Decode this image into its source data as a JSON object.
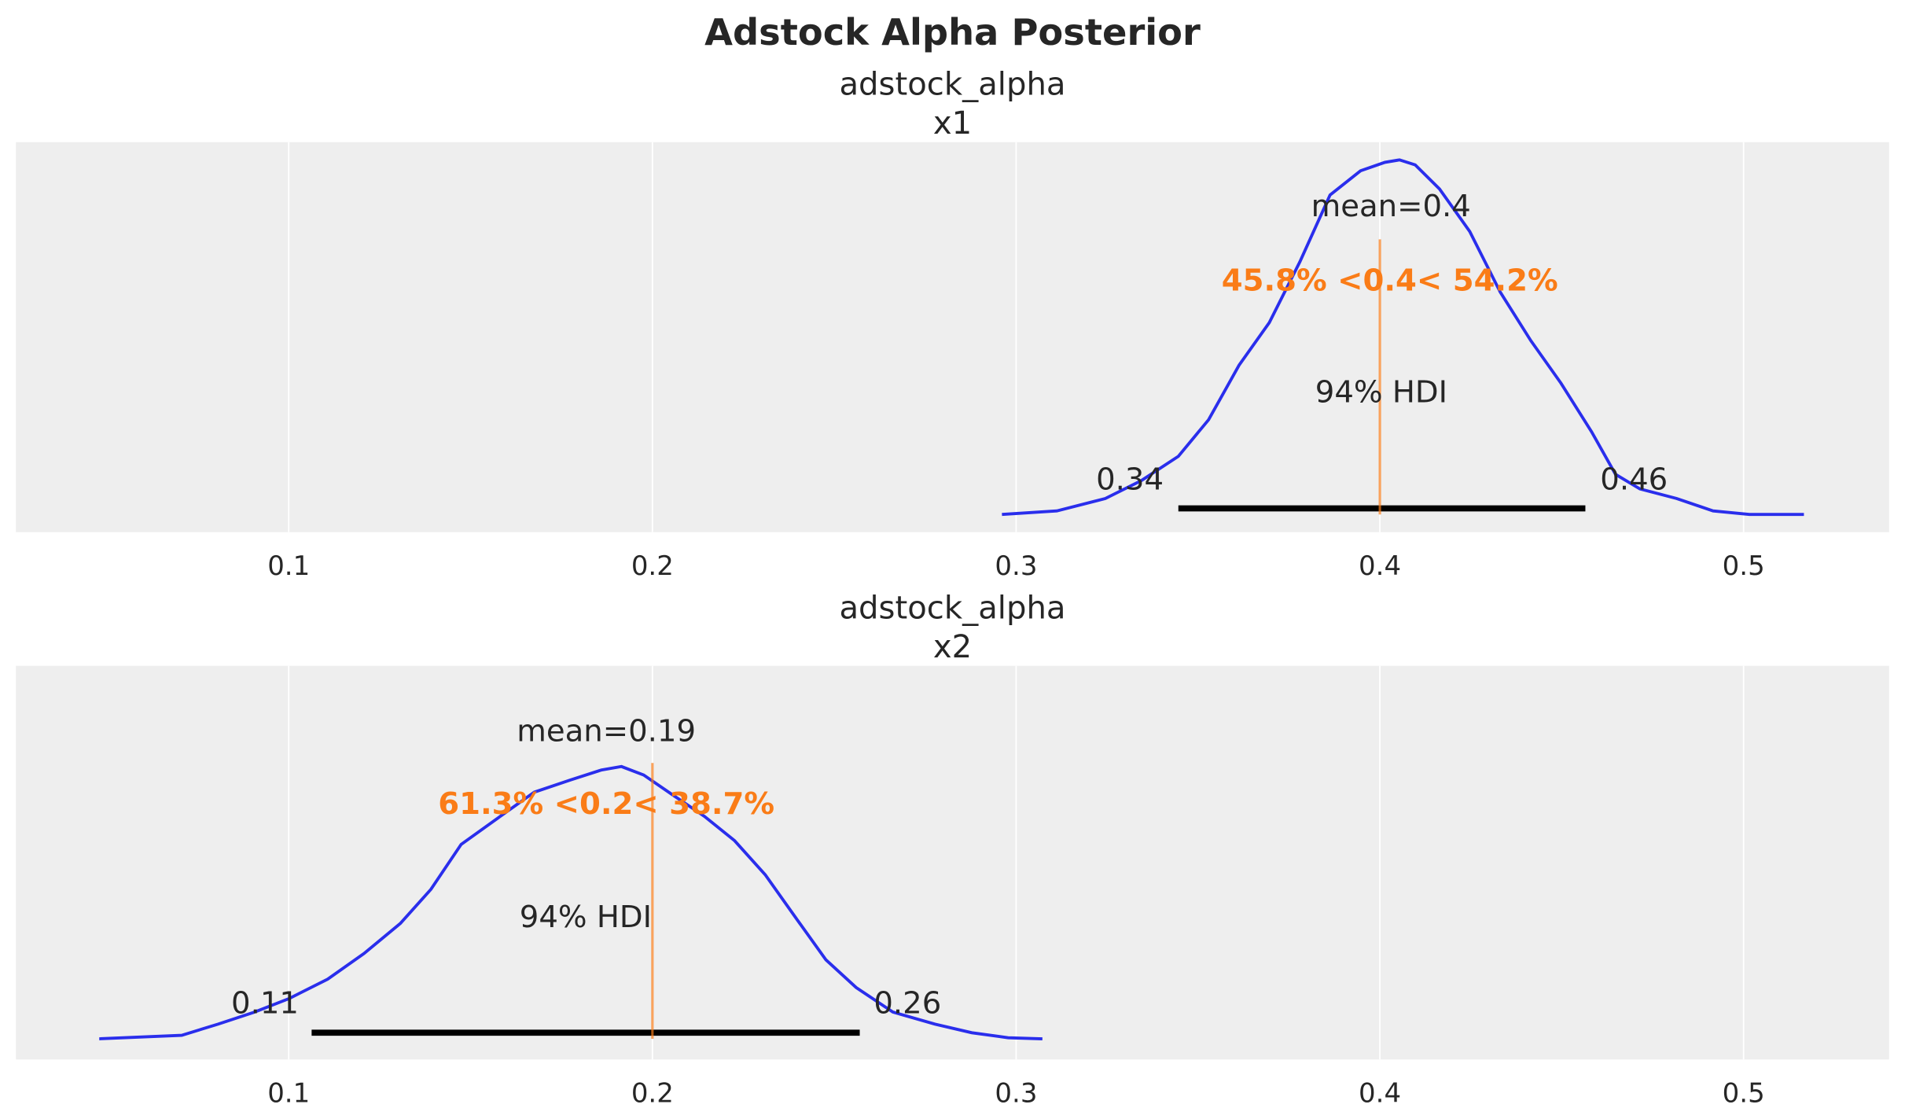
{
  "title": "Adstock Alpha Posterior",
  "chart_data": [
    {
      "type": "line",
      "title": "adstock_alpha",
      "subtitle": "x1",
      "xlim": [
        0.025,
        0.54
      ],
      "ylim": [
        -0.05,
        1.05
      ],
      "xticks": [
        0.1,
        0.2,
        0.3,
        0.4,
        0.5
      ],
      "xtick_labels": [
        "0.1",
        "0.2",
        "0.3",
        "0.4",
        "0.5"
      ],
      "grid": true,
      "line_color": "#2a2eec",
      "ref_color": "#fa7c17",
      "x": [
        0.2961,
        0.3112,
        0.3245,
        0.3345,
        0.3446,
        0.3529,
        0.3613,
        0.3696,
        0.378,
        0.3863,
        0.3947,
        0.4014,
        0.4054,
        0.4097,
        0.4164,
        0.4247,
        0.4331,
        0.4415,
        0.4498,
        0.4582,
        0.4648,
        0.4715,
        0.4816,
        0.4916,
        0.5016,
        0.5166
      ],
      "density": [
        0,
        0.01,
        0.045,
        0.096,
        0.164,
        0.267,
        0.421,
        0.541,
        0.712,
        0.901,
        0.969,
        0.993,
        1.0,
        0.986,
        0.918,
        0.798,
        0.627,
        0.49,
        0.37,
        0.233,
        0.113,
        0.072,
        0.045,
        0.01,
        0,
        0
      ],
      "mean": 0.4,
      "mean_label": "mean=0.4",
      "ref_val": 0.4,
      "ref_label": "45.8% <0.4< 54.2%",
      "hdi": [
        0.3446,
        0.4565
      ],
      "hdi_label": "94% HDI",
      "hdi_low_label": "0.34",
      "hdi_high_label": "0.46"
    },
    {
      "type": "line",
      "title": "adstock_alpha",
      "subtitle": "x2",
      "xlim": [
        0.025,
        0.54
      ],
      "ylim": [
        -0.076,
        1.37
      ],
      "xticks": [
        0.1,
        0.2,
        0.3,
        0.4,
        0.5
      ],
      "xtick_labels": [
        "0.1",
        "0.2",
        "0.3",
        "0.4",
        "0.5"
      ],
      "grid": true,
      "line_color": "#2a2eec",
      "ref_color": "#fa7c17",
      "x": [
        0.0479,
        0.0706,
        0.0806,
        0.0906,
        0.1,
        0.1107,
        0.1207,
        0.1307,
        0.1391,
        0.1474,
        0.1591,
        0.1675,
        0.1775,
        0.1859,
        0.1915,
        0.1976,
        0.2059,
        0.2143,
        0.2226,
        0.231,
        0.2393,
        0.2477,
        0.256,
        0.2661,
        0.2777,
        0.2878,
        0.2978,
        0.3072
      ],
      "density": [
        0,
        0.013,
        0.054,
        0.098,
        0.147,
        0.219,
        0.313,
        0.424,
        0.549,
        0.714,
        0.826,
        0.906,
        0.951,
        0.987,
        1.0,
        0.969,
        0.893,
        0.817,
        0.728,
        0.603,
        0.446,
        0.29,
        0.188,
        0.098,
        0.054,
        0.022,
        0.004,
        0
      ],
      "mean": 0.19,
      "mean_label": "mean=0.19",
      "ref_val": 0.2,
      "ref_label": "61.3% <0.2< 38.7%",
      "hdi": [
        0.1063,
        0.257
      ],
      "hdi_label": "94% HDI",
      "hdi_low_label": "0.11",
      "hdi_high_label": "0.26"
    }
  ]
}
